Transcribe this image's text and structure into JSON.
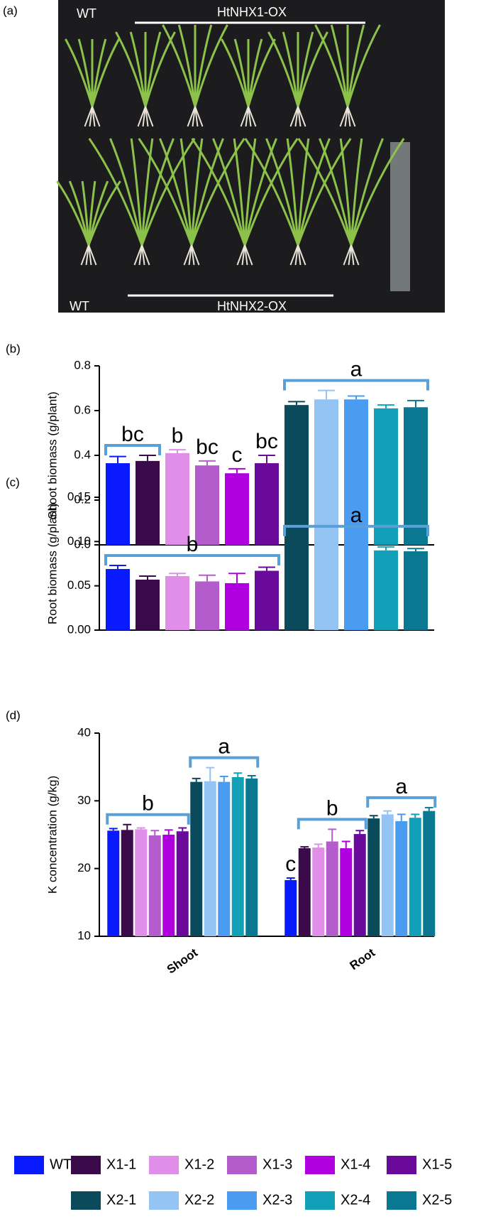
{
  "photo": {
    "label": "(a)",
    "top_left": "WT",
    "top_right": "HtNHX1-OX",
    "bottom_left": "WT",
    "bottom_right": "HtNHX2-OX"
  },
  "chart_data": [
    {
      "type": "bar",
      "label": "(b)",
      "y_label": "Shoot biomass (g/plant)",
      "categories": [
        null,
        null,
        null,
        null,
        null,
        null,
        null,
        null,
        null,
        null,
        null
      ],
      "values": [
        0.365,
        0.375,
        0.41,
        0.355,
        0.32,
        0.365,
        0.625,
        0.65,
        0.65,
        0.61,
        0.615
      ],
      "errors": [
        0.03,
        0.025,
        0.015,
        0.02,
        0.02,
        0.035,
        0.015,
        0.04,
        0.015,
        0.015,
        0.03
      ],
      "colors": [
        "#0a1aff",
        "#3a0a4a",
        "#e08ee8",
        "#b45ccc",
        "#b000e0",
        "#6a0a9a",
        "#0a4a5a",
        "#94c4f4",
        "#4a9cf0",
        "#10a0b8",
        "#0a7890"
      ],
      "ylim": [
        0,
        0.8
      ],
      "yticks": [
        {
          "value": 0,
          "label": "0.0"
        },
        0.2,
        0.4,
        0.6,
        0.8
      ],
      "annotations": [
        {
          "text": "bc",
          "bars": [
            0,
            1
          ]
        },
        {
          "text": "b",
          "bars": [
            2,
            2
          ]
        },
        {
          "text": "bc",
          "bars": [
            3,
            3
          ]
        },
        {
          "text": "c",
          "bars": [
            4,
            4
          ]
        },
        {
          "text": "bc",
          "bars": [
            5,
            5
          ]
        },
        {
          "text": "a",
          "bars": [
            6,
            10
          ]
        }
      ]
    },
    {
      "type": "bar",
      "label": "(c)",
      "y_label": "Root biomass (g/plant)",
      "categories": [
        null,
        null,
        null,
        null,
        null,
        null,
        null,
        null,
        null,
        null,
        null
      ],
      "values": [
        0.069,
        0.057,
        0.061,
        0.055,
        0.053,
        0.067,
        0.098,
        0.098,
        0.097,
        0.09,
        0.089
      ],
      "errors": [
        0.004,
        0.004,
        0.003,
        0.007,
        0.011,
        0.004,
        0.003,
        0.008,
        0.008,
        0.004,
        0.003
      ],
      "colors": [
        "#0a1aff",
        "#3a0a4a",
        "#e08ee8",
        "#b45ccc",
        "#b000e0",
        "#6a0a9a",
        "#0a4a5a",
        "#94c4f4",
        "#4a9cf0",
        "#10a0b8",
        "#0a7890"
      ],
      "ylim": [
        0,
        0.15
      ],
      "yticks": [
        {
          "value": 0,
          "label": "0.00"
        },
        0.05,
        {
          "value": 0.1,
          "label": "0.10"
        },
        0.15
      ],
      "annotations": [
        {
          "text": "b",
          "bars": [
            0,
            5
          ]
        },
        {
          "text": "a",
          "bars": [
            6,
            10
          ]
        }
      ]
    },
    {
      "type": "grouped_bar",
      "label": "(d)",
      "y_label": "K concentration (g/kg)",
      "categories": [
        "Shoot",
        "Root"
      ],
      "series": [
        {
          "name": "WT",
          "color": "#0a1aff",
          "values": [
            25.6,
            18.3
          ],
          "errors": [
            0.3,
            0.3
          ]
        },
        {
          "name": "X1-1",
          "color": "#3a0a4a",
          "values": [
            25.7,
            23.0
          ],
          "errors": [
            0.8,
            0.2
          ]
        },
        {
          "name": "X1-2",
          "color": "#e08ee8",
          "values": [
            25.8,
            23.1
          ],
          "errors": [
            0.2,
            0.5
          ]
        },
        {
          "name": "X1-3",
          "color": "#b45ccc",
          "values": [
            24.9,
            24.0
          ],
          "errors": [
            0.7,
            1.8
          ]
        },
        {
          "name": "X1-4",
          "color": "#b000e0",
          "values": [
            25.0,
            23.0
          ],
          "errors": [
            0.7,
            1.0
          ]
        },
        {
          "name": "X1-5",
          "color": "#6a0a9a",
          "values": [
            25.5,
            25.1
          ],
          "errors": [
            0.5,
            0.5
          ]
        },
        {
          "name": "X2-1",
          "color": "#0a4a5a",
          "values": [
            32.8,
            27.4
          ],
          "errors": [
            0.5,
            0.4
          ]
        },
        {
          "name": "X2-2",
          "color": "#94c4f4",
          "values": [
            32.9,
            28.0
          ],
          "errors": [
            2.0,
            0.5
          ]
        },
        {
          "name": "X2-3",
          "color": "#4a9cf0",
          "values": [
            32.8,
            27.0
          ],
          "errors": [
            0.8,
            1.0
          ]
        },
        {
          "name": "X2-4",
          "color": "#10a0b8",
          "values": [
            33.5,
            27.5
          ],
          "errors": [
            0.6,
            0.5
          ]
        },
        {
          "name": "X2-5",
          "color": "#0a7890",
          "values": [
            33.3,
            28.5
          ],
          "errors": [
            0.4,
            0.5
          ]
        }
      ],
      "ylim": [
        10,
        40
      ],
      "yticks": [
        10,
        20,
        30,
        40
      ],
      "annotations": [
        {
          "text": "b",
          "category": 0,
          "bars": [
            0,
            5
          ]
        },
        {
          "text": "a",
          "category": 0,
          "bars": [
            6,
            10
          ]
        },
        {
          "text": "c",
          "category": 1,
          "bars": [
            0,
            0
          ]
        },
        {
          "text": "b",
          "category": 1,
          "bars": [
            1,
            5
          ]
        },
        {
          "text": "a",
          "category": 1,
          "bars": [
            6,
            10
          ]
        }
      ],
      "legend": "bottom"
    }
  ]
}
